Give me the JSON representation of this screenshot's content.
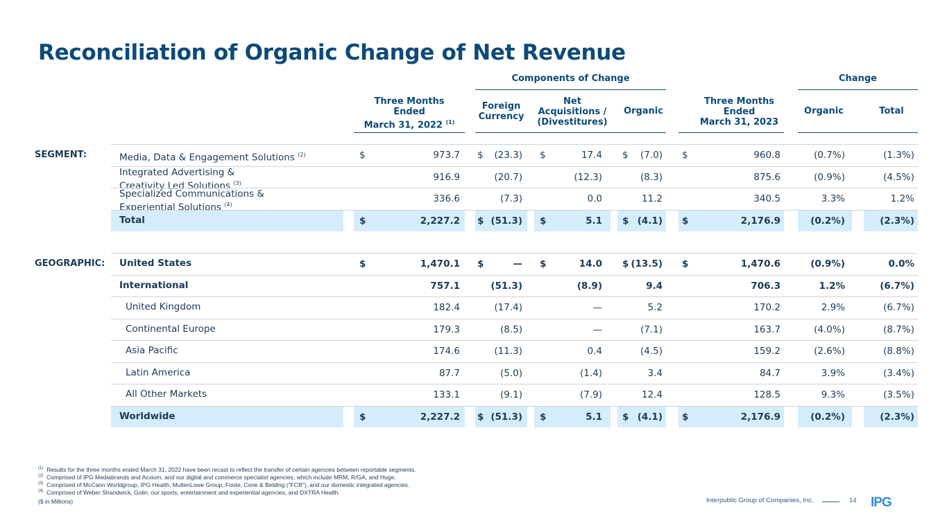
{
  "title": "Reconciliation of Organic Change of Net Revenue",
  "groups": {
    "components": "Components of Change",
    "change": "Change"
  },
  "headers": {
    "prior": [
      "Three Months",
      "Ended",
      "March 31, 2022"
    ],
    "prior_note": "(1)",
    "fx": [
      "Foreign",
      "Currency"
    ],
    "acq": [
      "Net",
      "Acquisitions /",
      "(Divestitures)"
    ],
    "organic": "Organic",
    "current": [
      "Three Months",
      "Ended",
      "March 31, 2023"
    ],
    "chg_organic": "Organic",
    "chg_total": "Total"
  },
  "segment_label": "SEGMENT:",
  "geo_label": "GEOGRAPHIC:",
  "dollar": "$",
  "segment_rows": [
    {
      "label": [
        "Media, Data & Engagement Solutions"
      ],
      "note": "(2)",
      "prior": "973.7",
      "fx": "(23.3)",
      "acq": "17.4",
      "organic": "(7.0)",
      "current": "960.8",
      "pct_org": "(0.7%)",
      "pct_tot": "(1.3%)"
    },
    {
      "label": [
        "Integrated Advertising &",
        "Creativity Led Solutions"
      ],
      "note": "(3)",
      "prior": "916.9",
      "fx": "(20.7)",
      "acq": "(12.3)",
      "organic": "(8.3)",
      "current": "875.6",
      "pct_org": "(0.9%)",
      "pct_tot": "(4.5%)"
    },
    {
      "label": [
        "Specialized Communications &",
        "Experiential Solutions"
      ],
      "note": "(4)",
      "prior": "336.6",
      "fx": "(7.3)",
      "acq": "0.0",
      "organic": "11.2",
      "current": "340.5",
      "pct_org": "3.3%",
      "pct_tot": "1.2%"
    },
    {
      "label": [
        "Total"
      ],
      "note": "",
      "prior": "2,227.2",
      "fx": "(51.3)",
      "acq": "5.1",
      "organic": "(4.1)",
      "current": "2,176.9",
      "pct_org": "(0.2%)",
      "pct_tot": "(2.3%)"
    }
  ],
  "geo_rows": [
    {
      "label": "United States",
      "prior": "1,470.1",
      "fx": "—",
      "acq": "14.0",
      "organic": "(13.5)",
      "current": "1,470.6",
      "pct_org": "(0.9%)",
      "pct_tot": "0.0%"
    },
    {
      "label": "International",
      "prior": "757.1",
      "fx": "(51.3)",
      "acq": "(8.9)",
      "organic": "9.4",
      "current": "706.3",
      "pct_org": "1.2%",
      "pct_tot": "(6.7%)"
    },
    {
      "label": "United Kingdom",
      "prior": "182.4",
      "fx": "(17.4)",
      "acq": "—",
      "organic": "5.2",
      "current": "170.2",
      "pct_org": "2.9%",
      "pct_tot": "(6.7%)"
    },
    {
      "label": "Continental Europe",
      "prior": "179.3",
      "fx": "(8.5)",
      "acq": "—",
      "organic": "(7.1)",
      "current": "163.7",
      "pct_org": "(4.0%)",
      "pct_tot": "(8.7%)"
    },
    {
      "label": "Asia Pacific",
      "prior": "174.6",
      "fx": "(11.3)",
      "acq": "0.4",
      "organic": "(4.5)",
      "current": "159.2",
      "pct_org": "(2.6%)",
      "pct_tot": "(8.8%)"
    },
    {
      "label": "Latin America",
      "prior": "87.7",
      "fx": "(5.0)",
      "acq": "(1.4)",
      "organic": "3.4",
      "current": "84.7",
      "pct_org": "3.9%",
      "pct_tot": "(3.4%)"
    },
    {
      "label": "All Other Markets",
      "prior": "133.1",
      "fx": "(9.1)",
      "acq": "(7.9)",
      "organic": "12.4",
      "current": "128.5",
      "pct_org": "9.3%",
      "pct_tot": "(3.5%)"
    },
    {
      "label": "Worldwide",
      "prior": "2,227.2",
      "fx": "(51.3)",
      "acq": "5.1",
      "organic": "(4.1)",
      "current": "2,176.9",
      "pct_org": "(0.2%)",
      "pct_tot": "(2.3%)"
    }
  ],
  "footnotes": [
    {
      "mark": "(1)",
      "text": "Results for the three months ended March 31, 2022 have been recast to reflect the transfer of certain agencies between reportable segments."
    },
    {
      "mark": "(2)",
      "text": "Comprised of IPG Mediabrands and Acxiom, and our digital and commerce specialist agencies, which include MRM, R/GA, and Huge."
    },
    {
      "mark": "(3)",
      "text": "Comprised of McCann Worldgroup, IPG Health, MullenLowe Group, Foote, Cone & Belding (\"FCB\"), and our domestic integrated agencies."
    },
    {
      "mark": "(4)",
      "text": "Comprised of Weber Shandwick, Golin, our sports, entertainment and experiential agencies, and DXTRA Health."
    }
  ],
  "units_note": "($ in Millions)",
  "company": "Interpublic Group of Companies, Inc.",
  "page_number": "14",
  "logo_text": "IPG",
  "colors": {
    "title": "#0c4a7a",
    "highlight": "#d5ecfb",
    "logo": "#2f8ecf"
  }
}
